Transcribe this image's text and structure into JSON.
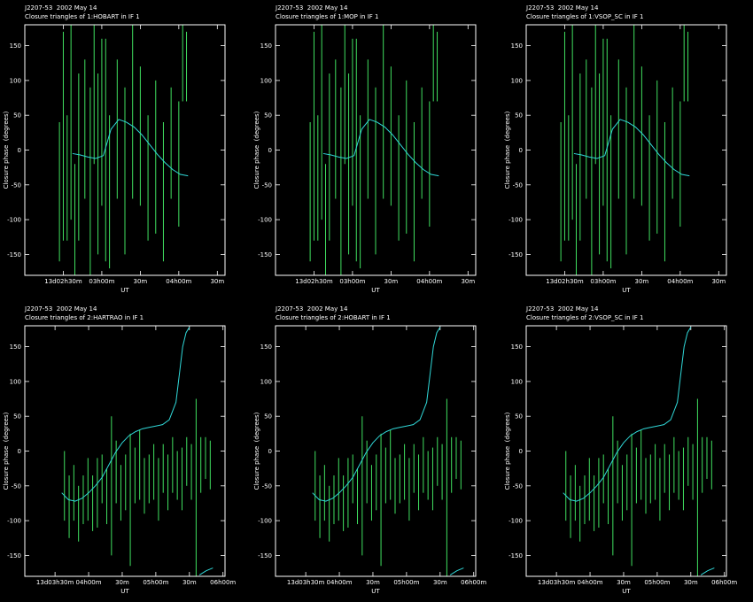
{
  "chart_data": [
    {
      "type": "errorbar",
      "title": "J2207-53  2002 May 14",
      "subtitle": "Closure triangles of 1:HOBART in IF 1",
      "xlabel": "UT",
      "ylabel": "Closure phase  (degrees)",
      "xlim": [
        2.0,
        4.6
      ],
      "ylim": [
        -180,
        180
      ],
      "xticks": [
        {
          "value": 2.5,
          "label": "13d02h30m"
        },
        {
          "value": 3,
          "label": "03h00m"
        },
        {
          "value": 3.5,
          "label": "30m"
        },
        {
          "value": 4,
          "label": "04h00m"
        },
        {
          "value": 4.5,
          "label": "30m"
        }
      ],
      "yticks": [
        -150,
        -100,
        -50,
        0,
        50,
        100,
        150
      ],
      "series": [
        {
          "color": "#40e060",
          "x": [
            2.45,
            2.5,
            2.55,
            2.6,
            2.65,
            2.7,
            2.78,
            2.85,
            2.9,
            2.95,
            3.0,
            3.05,
            3.1,
            3.2,
            3.3,
            3.4,
            3.5,
            3.6,
            3.7,
            3.8,
            3.9,
            4.0,
            4.05,
            4.1
          ],
          "values": [
            -60,
            20,
            -40,
            60,
            -100,
            -10,
            30,
            -50,
            80,
            -20,
            40,
            0,
            -60,
            30,
            -30,
            70,
            20,
            -40,
            -10,
            -60,
            10,
            -20,
            130,
            120
          ],
          "errors": [
            100,
            150,
            90,
            160,
            80,
            120,
            100,
            140,
            100,
            130,
            120,
            160,
            110,
            100,
            120,
            140,
            100,
            90,
            110,
            100,
            80,
            90,
            60,
            50
          ]
        },
        {
          "color": "#30d8d8",
          "x": [
            2.62,
            2.72,
            2.82,
            2.92,
            3.02,
            3.12,
            3.22,
            3.32,
            3.42,
            3.52,
            3.62,
            3.72,
            3.82,
            3.92,
            4.02,
            4.12
          ],
          "values": [
            -5,
            -7,
            -10,
            -12,
            -8,
            30,
            44,
            40,
            33,
            22,
            8,
            -6,
            -18,
            -28,
            -35,
            -37
          ]
        }
      ]
    },
    {
      "type": "errorbar",
      "title": "J2207-53  2002 May 14",
      "subtitle": "Closure triangles of 1:MOP in IF 1",
      "xlabel": "UT",
      "ylabel": "Closure phase  (degrees)",
      "xlim": [
        2.0,
        4.6
      ],
      "ylim": [
        -180,
        180
      ],
      "xticks": [
        {
          "value": 2.5,
          "label": "13d02h30m"
        },
        {
          "value": 3,
          "label": "03h00m"
        },
        {
          "value": 3.5,
          "label": "30m"
        },
        {
          "value": 4,
          "label": "04h00m"
        },
        {
          "value": 4.5,
          "label": "30m"
        }
      ],
      "yticks": [
        -150,
        -100,
        -50,
        0,
        50,
        100,
        150
      ],
      "series": [
        {
          "color": "#40e060",
          "x": [
            2.45,
            2.5,
            2.55,
            2.6,
            2.65,
            2.7,
            2.78,
            2.85,
            2.9,
            2.95,
            3.0,
            3.05,
            3.1,
            3.2,
            3.3,
            3.4,
            3.5,
            3.6,
            3.7,
            3.8,
            3.9,
            4.0,
            4.05,
            4.1
          ],
          "values": [
            -60,
            20,
            -40,
            60,
            -100,
            -10,
            30,
            -50,
            80,
            -20,
            40,
            0,
            -60,
            30,
            -30,
            70,
            20,
            -40,
            -10,
            -60,
            10,
            -20,
            130,
            120
          ],
          "errors": [
            100,
            150,
            90,
            160,
            80,
            120,
            100,
            140,
            100,
            130,
            120,
            160,
            110,
            100,
            120,
            140,
            100,
            90,
            110,
            100,
            80,
            90,
            60,
            50
          ]
        },
        {
          "color": "#30d8d8",
          "x": [
            2.62,
            2.72,
            2.82,
            2.92,
            3.02,
            3.12,
            3.22,
            3.32,
            3.42,
            3.52,
            3.62,
            3.72,
            3.82,
            3.92,
            4.02,
            4.12
          ],
          "values": [
            -5,
            -7,
            -10,
            -12,
            -8,
            30,
            44,
            40,
            33,
            22,
            8,
            -6,
            -18,
            -28,
            -35,
            -37
          ]
        }
      ]
    },
    {
      "type": "errorbar",
      "title": "J2207-53  2002 May 14",
      "subtitle": "Closure triangles of 1:VSOP_SC in IF 1",
      "xlabel": "UT",
      "ylabel": "Closure phase  (degrees)",
      "xlim": [
        2.0,
        4.6
      ],
      "ylim": [
        -180,
        180
      ],
      "xticks": [
        {
          "value": 2.5,
          "label": "13d02h30m"
        },
        {
          "value": 3,
          "label": "03h00m"
        },
        {
          "value": 3.5,
          "label": "30m"
        },
        {
          "value": 4,
          "label": "04h00m"
        },
        {
          "value": 4.5,
          "label": "30m"
        }
      ],
      "yticks": [
        -150,
        -100,
        -50,
        0,
        50,
        100,
        150
      ],
      "series": [
        {
          "color": "#40e060",
          "x": [
            2.45,
            2.5,
            2.55,
            2.6,
            2.65,
            2.7,
            2.78,
            2.85,
            2.9,
            2.95,
            3.0,
            3.05,
            3.1,
            3.2,
            3.3,
            3.4,
            3.5,
            3.6,
            3.7,
            3.8,
            3.9,
            4.0,
            4.05,
            4.1
          ],
          "values": [
            -60,
            20,
            -40,
            60,
            -100,
            -10,
            30,
            -50,
            80,
            -20,
            40,
            0,
            -60,
            30,
            -30,
            70,
            20,
            -40,
            -10,
            -60,
            10,
            -20,
            130,
            120
          ],
          "errors": [
            100,
            150,
            90,
            160,
            80,
            120,
            100,
            140,
            100,
            130,
            120,
            160,
            110,
            100,
            120,
            140,
            100,
            90,
            110,
            100,
            80,
            90,
            60,
            50
          ]
        },
        {
          "color": "#30d8d8",
          "x": [
            2.62,
            2.72,
            2.82,
            2.92,
            3.02,
            3.12,
            3.22,
            3.32,
            3.42,
            3.52,
            3.62,
            3.72,
            3.82,
            3.92,
            4.02,
            4.12
          ],
          "values": [
            -5,
            -7,
            -10,
            -12,
            -8,
            30,
            44,
            40,
            33,
            22,
            8,
            -6,
            -18,
            -28,
            -35,
            -37
          ]
        }
      ]
    },
    {
      "type": "errorbar",
      "title": "J2207-53  2002 May 14",
      "subtitle": "Closure triangles of 2:HARTRAO in IF 1",
      "xlabel": "UT",
      "ylabel": "Closure phase  (degrees)",
      "xlim": [
        3.05,
        6.03
      ],
      "ylim": [
        -180,
        180
      ],
      "xticks": [
        {
          "value": 3.5,
          "label": "13d03h30m"
        },
        {
          "value": 4,
          "label": "04h00m"
        },
        {
          "value": 4.5,
          "label": "30m"
        },
        {
          "value": 5,
          "label": "05h00m"
        },
        {
          "value": 5.5,
          "label": "30m"
        },
        {
          "value": 6,
          "label": "06h00m"
        }
      ],
      "yticks": [
        -150,
        -100,
        -50,
        0,
        50,
        100,
        150
      ],
      "series": [
        {
          "color": "#40e060",
          "x": [
            3.64,
            3.71,
            3.78,
            3.85,
            3.92,
            3.99,
            4.06,
            4.13,
            4.2,
            4.27,
            4.34,
            4.41,
            4.48,
            4.55,
            4.62,
            4.69,
            4.76,
            4.83,
            4.9,
            4.97,
            5.04,
            5.11,
            5.18,
            5.25,
            5.32,
            5.39,
            5.46,
            5.53,
            5.6,
            5.67,
            5.74,
            5.81
          ],
          "values": [
            -50,
            -80,
            -60,
            -90,
            -70,
            -55,
            -75,
            -60,
            -40,
            -65,
            -50,
            -30,
            -60,
            -45,
            -70,
            -35,
            -20,
            -50,
            -40,
            -30,
            -55,
            -25,
            -45,
            -20,
            -35,
            -40,
            -15,
            -30,
            -55,
            -20,
            -10,
            -20
          ],
          "errors": [
            50,
            45,
            40,
            40,
            35,
            45,
            40,
            50,
            35,
            40,
            100,
            45,
            40,
            40,
            95,
            40,
            50,
            40,
            35,
            40,
            45,
            35,
            40,
            40,
            35,
            45,
            35,
            40,
            130,
            40,
            30,
            35
          ]
        },
        {
          "color": "#30d8d8",
          "x": [
            3.6,
            3.7,
            3.8,
            3.9,
            4.0,
            4.1,
            4.2,
            4.3,
            4.4,
            4.5,
            4.6,
            4.7,
            4.8,
            4.9,
            5.0,
            5.1,
            5.2,
            5.3,
            5.35,
            5.4,
            5.45,
            5.5,
            5.57,
            5.65,
            5.75,
            5.85
          ],
          "values": [
            -60,
            -70,
            -72,
            -68,
            -60,
            -50,
            -38,
            -20,
            -2,
            12,
            22,
            28,
            32,
            34,
            36,
            38,
            45,
            70,
            110,
            150,
            170,
            178,
            null,
            -178,
            -172,
            -168
          ]
        }
      ]
    },
    {
      "type": "errorbar",
      "title": "J2207-53  2002 May 14",
      "subtitle": "Closure triangles of 2:HOBART in IF 1",
      "xlabel": "UT",
      "ylabel": "Closure phase  (degrees)",
      "xlim": [
        3.05,
        6.03
      ],
      "ylim": [
        -180,
        180
      ],
      "xticks": [
        {
          "value": 3.5,
          "label": "13d03h30m"
        },
        {
          "value": 4,
          "label": "04h00m"
        },
        {
          "value": 4.5,
          "label": "30m"
        },
        {
          "value": 5,
          "label": "05h00m"
        },
        {
          "value": 5.5,
          "label": "30m"
        },
        {
          "value": 6,
          "label": "06h00m"
        }
      ],
      "yticks": [
        -150,
        -100,
        -50,
        0,
        50,
        100,
        150
      ],
      "series": [
        {
          "color": "#40e060",
          "x": [
            3.64,
            3.71,
            3.78,
            3.85,
            3.92,
            3.99,
            4.06,
            4.13,
            4.2,
            4.27,
            4.34,
            4.41,
            4.48,
            4.55,
            4.62,
            4.69,
            4.76,
            4.83,
            4.9,
            4.97,
            5.04,
            5.11,
            5.18,
            5.25,
            5.32,
            5.39,
            5.46,
            5.53,
            5.6,
            5.67,
            5.74,
            5.81
          ],
          "values": [
            -50,
            -80,
            -60,
            -90,
            -70,
            -55,
            -75,
            -60,
            -40,
            -65,
            -50,
            -30,
            -60,
            -45,
            -70,
            -35,
            -20,
            -50,
            -40,
            -30,
            -55,
            -25,
            -45,
            -20,
            -35,
            -40,
            -15,
            -30,
            -55,
            -20,
            -10,
            -20
          ],
          "errors": [
            50,
            45,
            40,
            40,
            35,
            45,
            40,
            50,
            35,
            40,
            100,
            45,
            40,
            40,
            95,
            40,
            50,
            40,
            35,
            40,
            45,
            35,
            40,
            40,
            35,
            45,
            35,
            40,
            130,
            40,
            30,
            35
          ]
        },
        {
          "color": "#30d8d8",
          "x": [
            3.6,
            3.7,
            3.8,
            3.9,
            4.0,
            4.1,
            4.2,
            4.3,
            4.4,
            4.5,
            4.6,
            4.7,
            4.8,
            4.9,
            5.0,
            5.1,
            5.2,
            5.3,
            5.35,
            5.4,
            5.45,
            5.5,
            5.57,
            5.65,
            5.75,
            5.85
          ],
          "values": [
            -60,
            -70,
            -72,
            -68,
            -60,
            -50,
            -38,
            -20,
            -2,
            12,
            22,
            28,
            32,
            34,
            36,
            38,
            45,
            70,
            110,
            150,
            170,
            178,
            null,
            -178,
            -172,
            -168
          ]
        }
      ]
    },
    {
      "type": "errorbar",
      "title": "J2207-53  2002 May 14",
      "subtitle": "Closure triangles of 2:VSOP_SC in IF 1",
      "xlabel": "UT",
      "ylabel": "Closure phase  (degrees)",
      "xlim": [
        3.05,
        6.03
      ],
      "ylim": [
        -180,
        180
      ],
      "xticks": [
        {
          "value": 3.5,
          "label": "13d03h30m"
        },
        {
          "value": 4,
          "label": "04h00m"
        },
        {
          "value": 4.5,
          "label": "30m"
        },
        {
          "value": 5,
          "label": "05h00m"
        },
        {
          "value": 5.5,
          "label": "30m"
        },
        {
          "value": 6,
          "label": "06h00m"
        }
      ],
      "yticks": [
        -150,
        -100,
        -50,
        0,
        50,
        100,
        150
      ],
      "series": [
        {
          "color": "#40e060",
          "x": [
            3.64,
            3.71,
            3.78,
            3.85,
            3.92,
            3.99,
            4.06,
            4.13,
            4.2,
            4.27,
            4.34,
            4.41,
            4.48,
            4.55,
            4.62,
            4.69,
            4.76,
            4.83,
            4.9,
            4.97,
            5.04,
            5.11,
            5.18,
            5.25,
            5.32,
            5.39,
            5.46,
            5.53,
            5.6,
            5.67,
            5.74,
            5.81
          ],
          "values": [
            -50,
            -80,
            -60,
            -90,
            -70,
            -55,
            -75,
            -60,
            -40,
            -65,
            -50,
            -30,
            -60,
            -45,
            -70,
            -35,
            -20,
            -50,
            -40,
            -30,
            -55,
            -25,
            -45,
            -20,
            -35,
            -40,
            -15,
            -30,
            -55,
            -20,
            -10,
            -20
          ],
          "errors": [
            50,
            45,
            40,
            40,
            35,
            45,
            40,
            50,
            35,
            40,
            100,
            45,
            40,
            40,
            95,
            40,
            50,
            40,
            35,
            40,
            45,
            35,
            40,
            40,
            35,
            45,
            35,
            40,
            130,
            40,
            30,
            35
          ]
        },
        {
          "color": "#30d8d8",
          "x": [
            3.6,
            3.7,
            3.8,
            3.9,
            4.0,
            4.1,
            4.2,
            4.3,
            4.4,
            4.5,
            4.6,
            4.7,
            4.8,
            4.9,
            5.0,
            5.1,
            5.2,
            5.3,
            5.35,
            5.4,
            5.45,
            5.5,
            5.57,
            5.65,
            5.75,
            5.85
          ],
          "values": [
            -60,
            -70,
            -72,
            -68,
            -60,
            -50,
            -38,
            -20,
            -2,
            12,
            22,
            28,
            32,
            34,
            36,
            38,
            45,
            70,
            110,
            150,
            170,
            178,
            null,
            -178,
            -172,
            -168
          ]
        }
      ]
    }
  ]
}
